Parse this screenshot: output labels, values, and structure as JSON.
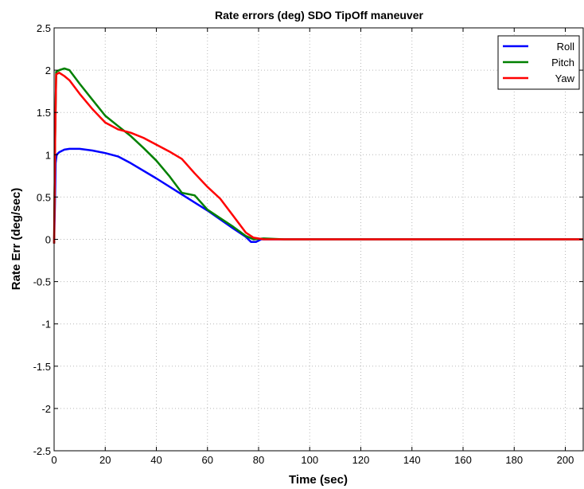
{
  "chart_data": {
    "type": "line",
    "title": "Rate errors (deg)  SDO TipOff maneuver",
    "xlabel": "Time (sec)",
    "ylabel": "Rate Err (deg/sec)",
    "xlim": [
      0,
      207
    ],
    "ylim": [
      -2.5,
      2.5
    ],
    "xticks": [
      "0",
      "20",
      "40",
      "60",
      "80",
      "100",
      "120",
      "140",
      "160",
      "180",
      "200"
    ],
    "yticks": [
      "2.5",
      "2",
      "1.5",
      "1",
      "0.5",
      "0",
      "-0.5",
      "-1",
      "-1.5",
      "-2",
      "-2.5"
    ],
    "grid": true,
    "legend_position": "top-right",
    "series": [
      {
        "name": "Roll",
        "color": "#0000ff",
        "points": [
          [
            0,
            -0.05
          ],
          [
            0.3,
            0.4
          ],
          [
            0.6,
            0.9
          ],
          [
            1,
            1.0
          ],
          [
            2,
            1.03
          ],
          [
            4,
            1.06
          ],
          [
            6,
            1.07
          ],
          [
            10,
            1.07
          ],
          [
            15,
            1.05
          ],
          [
            20,
            1.02
          ],
          [
            25,
            0.98
          ],
          [
            30,
            0.9
          ],
          [
            40,
            0.72
          ],
          [
            50,
            0.53
          ],
          [
            60,
            0.34
          ],
          [
            70,
            0.13
          ],
          [
            75,
            0.03
          ],
          [
            77,
            -0.03
          ],
          [
            79,
            -0.03
          ],
          [
            81,
            0.0
          ],
          [
            90,
            0.0
          ],
          [
            120,
            0.0
          ],
          [
            160,
            0.0
          ],
          [
            207,
            0.0
          ]
        ]
      },
      {
        "name": "Pitch",
        "color": "#008000",
        "points": [
          [
            0,
            -0.05
          ],
          [
            0.4,
            1.2
          ],
          [
            0.8,
            1.98
          ],
          [
            2,
            2.0
          ],
          [
            4,
            2.02
          ],
          [
            6,
            2.0
          ],
          [
            8,
            1.92
          ],
          [
            10,
            1.84
          ],
          [
            15,
            1.65
          ],
          [
            20,
            1.46
          ],
          [
            25,
            1.34
          ],
          [
            30,
            1.22
          ],
          [
            35,
            1.08
          ],
          [
            40,
            0.93
          ],
          [
            45,
            0.75
          ],
          [
            50,
            0.55
          ],
          [
            55,
            0.52
          ],
          [
            60,
            0.35
          ],
          [
            65,
            0.25
          ],
          [
            70,
            0.15
          ],
          [
            75,
            0.04
          ],
          [
            78,
            0.0
          ],
          [
            82,
            0.01
          ],
          [
            90,
            0.0
          ],
          [
            120,
            0.0
          ],
          [
            160,
            0.0
          ],
          [
            207,
            0.0
          ]
        ]
      },
      {
        "name": "Yaw",
        "color": "#ff0000",
        "points": [
          [
            0,
            -0.05
          ],
          [
            0.4,
            1.2
          ],
          [
            0.8,
            1.95
          ],
          [
            2,
            1.97
          ],
          [
            4,
            1.93
          ],
          [
            6,
            1.88
          ],
          [
            8,
            1.8
          ],
          [
            10,
            1.72
          ],
          [
            15,
            1.54
          ],
          [
            20,
            1.38
          ],
          [
            25,
            1.3
          ],
          [
            30,
            1.26
          ],
          [
            35,
            1.2
          ],
          [
            40,
            1.12
          ],
          [
            45,
            1.04
          ],
          [
            50,
            0.95
          ],
          [
            55,
            0.78
          ],
          [
            60,
            0.62
          ],
          [
            65,
            0.48
          ],
          [
            70,
            0.28
          ],
          [
            75,
            0.08
          ],
          [
            78,
            0.02
          ],
          [
            82,
            0.0
          ],
          [
            90,
            0.0
          ],
          [
            120,
            0.0
          ],
          [
            160,
            0.0
          ],
          [
            207,
            0.0
          ]
        ]
      }
    ]
  }
}
